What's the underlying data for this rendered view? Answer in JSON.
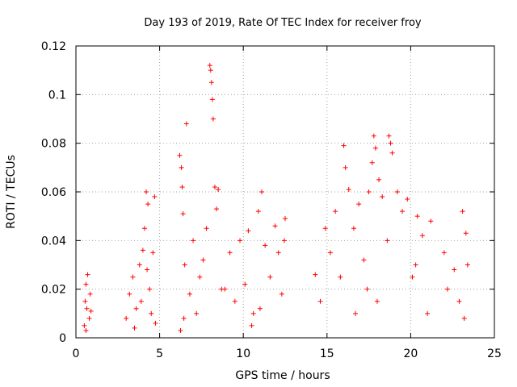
{
  "chart_data": {
    "type": "scatter",
    "title": "Day 193 of 2019, Rate Of TEC Index for receiver froy",
    "xlabel": "GPS time / hours",
    "ylabel": "ROTI / TECUs",
    "xlim": [
      0,
      25
    ],
    "ylim": [
      0,
      0.12
    ],
    "xticks": [
      0,
      5,
      10,
      15,
      20,
      25
    ],
    "xtick_labels": [
      "0",
      "5",
      "10",
      "15",
      "20",
      "25"
    ],
    "yticks": [
      0,
      0.02,
      0.04,
      0.06,
      0.08,
      0.1,
      0.12
    ],
    "ytick_labels": [
      "0",
      "0.02",
      "0.04",
      "0.06",
      "0.08",
      "0.1",
      "0.12"
    ],
    "grid": true,
    "marker": "+",
    "marker_color": "#ff0000",
    "series": [
      {
        "name": "ROTI",
        "x": [
          0.5,
          0.55,
          0.6,
          0.65,
          0.7,
          0.8,
          0.85,
          0.6,
          0.9,
          3.0,
          3.2,
          3.4,
          3.6,
          3.8,
          4.0,
          4.1,
          4.2,
          4.3,
          4.4,
          4.5,
          4.6,
          4.7,
          3.5,
          3.9,
          4.25,
          4.75,
          6.2,
          6.3,
          6.35,
          6.4,
          6.5,
          6.6,
          6.8,
          7.0,
          7.2,
          7.4,
          7.6,
          7.8,
          8.0,
          8.05,
          8.1,
          8.15,
          8.2,
          8.3,
          8.4,
          8.5,
          8.7,
          6.25,
          6.45,
          8.9,
          9.2,
          9.5,
          9.8,
          10.1,
          10.3,
          10.6,
          10.9,
          11.1,
          11.3,
          11.6,
          11.9,
          12.1,
          12.3,
          12.5,
          10.5,
          11.0,
          12.45,
          14.3,
          14.6,
          14.9,
          15.2,
          15.5,
          15.8,
          16.0,
          16.1,
          16.3,
          16.6,
          16.9,
          17.2,
          17.5,
          17.7,
          17.8,
          17.9,
          18.1,
          18.3,
          18.6,
          18.7,
          18.8,
          18.9,
          19.2,
          19.5,
          19.8,
          16.7,
          17.4,
          18.0,
          20.1,
          20.4,
          20.7,
          21.0,
          21.2,
          20.3,
          22.0,
          22.2,
          22.6,
          22.9,
          23.1,
          23.3,
          23.4,
          23.2
        ],
        "y": [
          0.005,
          0.015,
          0.022,
          0.012,
          0.026,
          0.008,
          0.018,
          0.003,
          0.011,
          0.008,
          0.018,
          0.025,
          0.012,
          0.03,
          0.036,
          0.045,
          0.06,
          0.055,
          0.02,
          0.01,
          0.035,
          0.058,
          0.004,
          0.015,
          0.028,
          0.006,
          0.075,
          0.07,
          0.062,
          0.051,
          0.03,
          0.088,
          0.018,
          0.04,
          0.01,
          0.025,
          0.032,
          0.045,
          0.112,
          0.11,
          0.105,
          0.098,
          0.09,
          0.062,
          0.053,
          0.061,
          0.02,
          0.003,
          0.008,
          0.02,
          0.035,
          0.015,
          0.04,
          0.022,
          0.044,
          0.01,
          0.052,
          0.06,
          0.038,
          0.025,
          0.046,
          0.035,
          0.018,
          0.049,
          0.005,
          0.012,
          0.04,
          0.026,
          0.015,
          0.045,
          0.035,
          0.052,
          0.025,
          0.079,
          0.07,
          0.061,
          0.045,
          0.055,
          0.032,
          0.06,
          0.072,
          0.083,
          0.078,
          0.065,
          0.058,
          0.04,
          0.083,
          0.08,
          0.076,
          0.06,
          0.052,
          0.057,
          0.01,
          0.02,
          0.015,
          0.025,
          0.05,
          0.042,
          0.01,
          0.048,
          0.03,
          0.035,
          0.02,
          0.028,
          0.015,
          0.052,
          0.043,
          0.03,
          0.008
        ]
      }
    ]
  }
}
